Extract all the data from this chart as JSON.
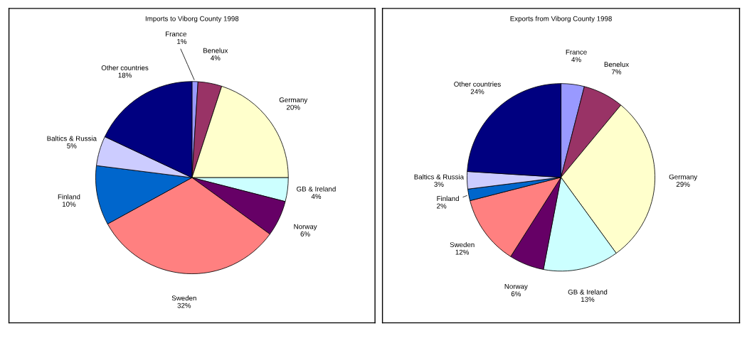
{
  "chart_data": [
    {
      "type": "pie",
      "title": "Imports to Viborg County 1998",
      "categories": [
        "France",
        "Benelux",
        "Germany",
        "GB & Ireland",
        "Norway",
        "Sweden",
        "Finland",
        "Baltics & Russia",
        "Other countries"
      ],
      "values": [
        1,
        4,
        20,
        4,
        6,
        32,
        10,
        5,
        18
      ],
      "value_labels": [
        "1%",
        "4%",
        "20%",
        "4%",
        "6%",
        "32%",
        "10%",
        "5%",
        "18%"
      ],
      "colors": [
        "#9999ff",
        "#993366",
        "#ffffcc",
        "#ccffff",
        "#660066",
        "#ff8080",
        "#0066cc",
        "#ccccff",
        "#000080"
      ],
      "legend": false
    },
    {
      "type": "pie",
      "title": "Exports from Viborg County 1998",
      "categories": [
        "France",
        "Benelux",
        "Germany",
        "GB & Ireland",
        "Norway",
        "Sweden",
        "Finland",
        "Baltics & Russia",
        "Other countries"
      ],
      "values": [
        4,
        7,
        29,
        13,
        6,
        12,
        2,
        3,
        24
      ],
      "value_labels": [
        "4%",
        "7%",
        "29%",
        "13%",
        "6%",
        "12%",
        "2%",
        "3%",
        "24%"
      ],
      "colors": [
        "#9999ff",
        "#993366",
        "#ffffcc",
        "#ccffff",
        "#660066",
        "#ff8080",
        "#0066cc",
        "#ccccff",
        "#000080"
      ],
      "legend": false
    }
  ]
}
